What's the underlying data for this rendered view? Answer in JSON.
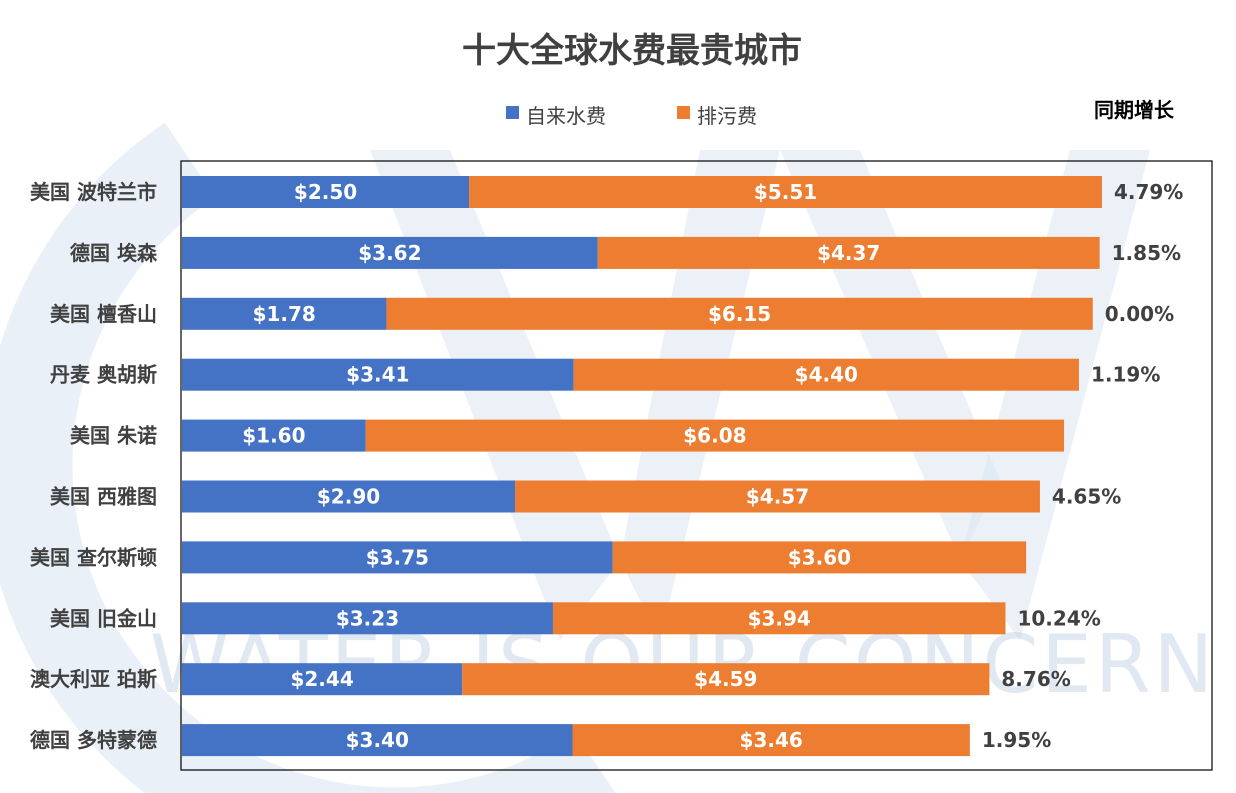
{
  "chart_data": {
    "type": "bar",
    "stacked": true,
    "orientation": "horizontal",
    "title": "十大全球水费最贵城市",
    "categories": [
      "美国 波特兰市",
      "德国 埃森",
      "美国 檀香山",
      "丹麦 奥胡斯",
      "美国 朱诺",
      "美国 西雅图",
      "美国 查尔斯顿",
      "美国 旧金山",
      "澳大利亚 珀斯",
      "德国 多特蒙德"
    ],
    "series": [
      {
        "name": "自来水费",
        "color": "#4472C4",
        "values": [
          2.5,
          3.62,
          1.78,
          3.41,
          1.6,
          2.9,
          3.75,
          3.23,
          2.44,
          3.4
        ],
        "labels": [
          "$2.50",
          "$3.62",
          "$1.78",
          "$3.41",
          "$1.60",
          "$2.90",
          "$3.75",
          "$3.23",
          "$2.44",
          "$3.40"
        ]
      },
      {
        "name": "排污费",
        "color": "#ED7D31",
        "values": [
          5.51,
          4.37,
          6.15,
          4.4,
          6.08,
          4.57,
          3.6,
          3.94,
          4.59,
          3.46
        ],
        "labels": [
          "$5.51",
          "$4.37",
          "$6.15",
          "$4.40",
          "$6.08",
          "$4.57",
          "$3.60",
          "$3.94",
          "$4.59",
          "$3.46"
        ]
      }
    ],
    "growth_header": "同期增长",
    "growth_labels": [
      "4.79%",
      "1.85%",
      "0.00%",
      "1.19%",
      "",
      "4.65%",
      "",
      "10.24%",
      "8.76%",
      "1.95%"
    ],
    "legend_position": "top",
    "grid": false,
    "watermark": "WATER IS OUR CONCERN"
  }
}
